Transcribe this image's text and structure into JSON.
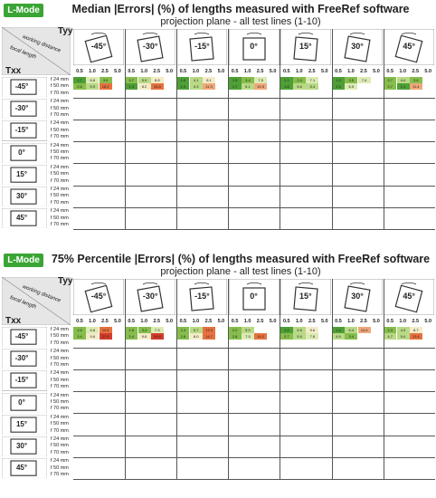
{
  "chart_data": [
    {
      "type": "heatmap",
      "badge": "L-Mode",
      "title": "Median |Errors| (%) of lengths measured with FreeRef software",
      "subtitle": "projection plane - all test lines (1-10)",
      "col_axis_label": "Tyy",
      "row_axis_label": "Txx",
      "corner_col_label": "working distance",
      "corner_row_label": "focal length",
      "tyy_angles": [
        "-45°",
        "-30°",
        "-15°",
        "0°",
        "15°",
        "30°",
        "45°"
      ],
      "working_distances": [
        "0.5",
        "1.0",
        "2.5",
        "5.0"
      ],
      "txx_angles": [
        "-45°",
        "-30°",
        "-15°",
        "0°",
        "15°",
        "30°",
        "45°"
      ],
      "focal_lengths": [
        "24 mm",
        "50 mm",
        "70 mm"
      ],
      "visible_values": [
        {
          "row": "-45°",
          "focal": "24 mm",
          "values": [
            "1.7",
            "6.8",
            "3.9",
            "",
            "3.7",
            "5.9",
            "8.8",
            "",
            "1.6",
            "4.1",
            "8.1",
            "",
            "1.5",
            "3.4",
            "7.5",
            "",
            "1.1",
            "2.4",
            "7.1",
            "",
            "1.3",
            "3.5",
            "7.4",
            "",
            "3.7",
            "4.4",
            "3.6",
            ""
          ]
        },
        {
          "row": "-45°",
          "focal": "50 mm",
          "values": [
            "2.6",
            "5.9",
            "16.2",
            "",
            "1.3",
            "8.2",
            "15.8",
            "",
            "1.9",
            "4.3",
            "11.3",
            "",
            "1.7",
            "5.1",
            "10.5",
            "",
            "1.8",
            "5.6",
            "5.4",
            "",
            "1.5",
            "6.5",
            "",
            "",
            "3.7",
            "1.1",
            "11.4",
            ""
          ]
        }
      ]
    },
    {
      "type": "heatmap",
      "badge": "L-Mode",
      "title": "75% Percentile |Errors| (%) of lengths measured with FreeRef software",
      "subtitle": "projection plane - all test lines (1-10)",
      "col_axis_label": "Tyy",
      "row_axis_label": "Txx",
      "corner_col_label": "working distance",
      "corner_row_label": "focal length",
      "tyy_angles": [
        "-45°",
        "-30°",
        "-15°",
        "0°",
        "15°",
        "30°",
        "45°"
      ],
      "working_distances": [
        "0.5",
        "1.0",
        "2.5",
        "5.0"
      ],
      "txx_angles": [
        "-45°",
        "-30°",
        "-15°",
        "0°",
        "15°",
        "30°",
        "45°"
      ],
      "focal_lengths": [
        "24 mm",
        "50 mm",
        "70 mm"
      ],
      "visible_values": [
        {
          "row": "-45°",
          "focal": "24 mm",
          "values": [
            "2.8",
            "6.8",
            "14.4",
            "",
            "2.8",
            "3.4",
            "7.9",
            "",
            "2.4",
            "5.7",
            "13.3",
            "",
            "2.2",
            "5.0",
            "",
            "",
            "1.4",
            "5.5",
            "9.6",
            "",
            "1.4",
            "5.4",
            "10.6",
            "",
            "3.3",
            "4.3",
            "8.7",
            ""
          ]
        },
        {
          "row": "-45°",
          "focal": "50 mm",
          "values": [
            "3.4",
            "9.6",
            "27.9",
            "",
            "3.4",
            "9.6",
            "19.6",
            "",
            "2.8",
            "8.0",
            "14.7",
            "",
            "2.8",
            "7.5",
            "14.2",
            "",
            "2.7",
            "5.9",
            "7.8",
            "",
            "4.9",
            "3.4",
            "",
            "",
            "4.7",
            "5.4",
            "13.6",
            ""
          ]
        }
      ]
    }
  ],
  "colors": {
    "badge": "#3aa535",
    "low": "#3f9b2f",
    "mid": "#d8e8a8",
    "high": "#e85a2a",
    "veryhigh": "#d0312a"
  }
}
